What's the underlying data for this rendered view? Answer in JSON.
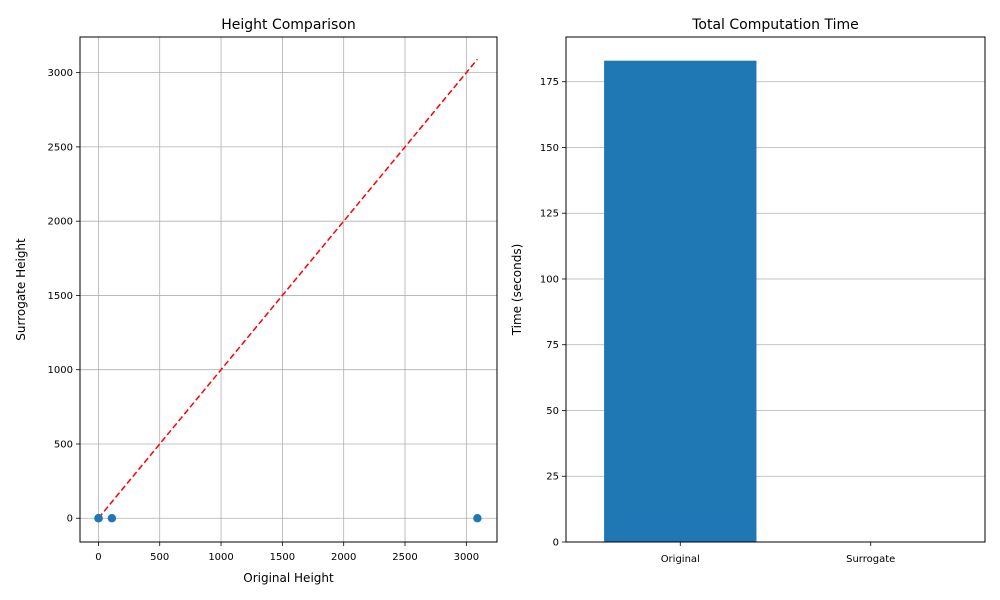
{
  "chart_data": [
    {
      "type": "scatter",
      "title": "Height Comparison",
      "xlabel": "Original Height",
      "ylabel": "Surrogate Height",
      "xlim": [
        -150,
        3250
      ],
      "ylim": [
        -160,
        3240
      ],
      "xticks": [
        0,
        500,
        1000,
        1500,
        2000,
        2500,
        3000
      ],
      "yticks": [
        0,
        500,
        1000,
        1500,
        2000,
        2500,
        3000
      ],
      "grid": true,
      "points": [
        {
          "x": 0,
          "y": 0
        },
        {
          "x": 2,
          "y": 0
        },
        {
          "x": 110,
          "y": 0
        },
        {
          "x": 3090,
          "y": 0
        }
      ],
      "reference_line": {
        "x": [
          0,
          3090
        ],
        "y": [
          0,
          3090
        ],
        "style": "dashed"
      },
      "colors": {
        "points": "#1f77b4",
        "reference_line": "#ff0000",
        "grid": "#b0b0b0"
      }
    },
    {
      "type": "bar",
      "title": "Total Computation Time",
      "xlabel": "",
      "ylabel": "Time (seconds)",
      "categories": [
        "Original",
        "Surrogate"
      ],
      "values": [
        183,
        0
      ],
      "ylim": [
        0,
        192
      ],
      "yticks": [
        0,
        25,
        50,
        75,
        100,
        125,
        150,
        175
      ],
      "grid": true,
      "grid_axis": "y",
      "colors": {
        "bars": "#1f77b4",
        "grid": "#b0b0b0"
      }
    }
  ]
}
